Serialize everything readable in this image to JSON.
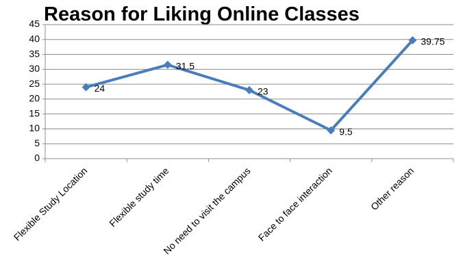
{
  "chart_data": {
    "type": "line",
    "title": "Reason for Liking Online Classes",
    "categories": [
      "Flexible Study Location",
      "Flexible study time",
      "No need to visit the campus",
      "Face to face interaction",
      "Other reason"
    ],
    "values": [
      24,
      31.5,
      23,
      9.5,
      39.75
    ],
    "color": "#4a7ebb",
    "ylim": [
      0,
      45
    ],
    "yticks": [
      0,
      5,
      10,
      15,
      20,
      25,
      30,
      35,
      40,
      45
    ],
    "grid": true
  }
}
